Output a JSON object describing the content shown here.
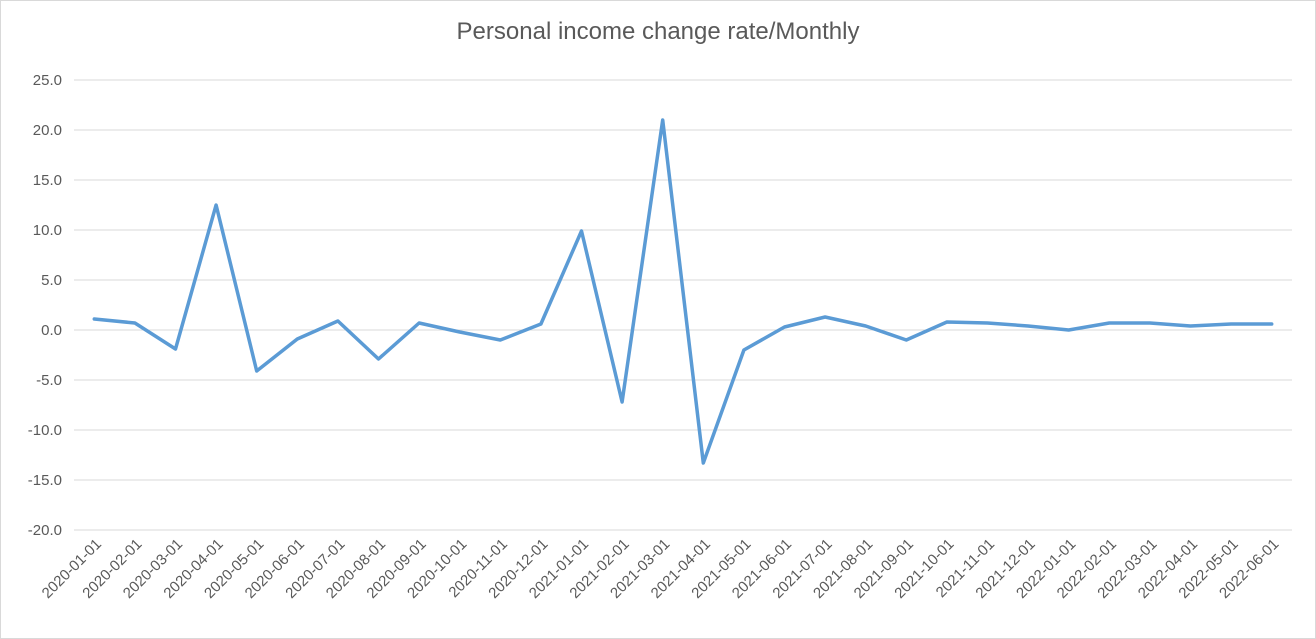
{
  "chart_data": {
    "type": "line",
    "title": "Personal income change rate/Monthly",
    "xlabel": "",
    "ylabel": "",
    "ylim": [
      -20,
      25
    ],
    "yticks": [
      "25.0",
      "20.0",
      "15.0",
      "10.0",
      "5.0",
      "0.0",
      "-5.0",
      "-10.0",
      "-15.0",
      "-20.0"
    ],
    "grid": true,
    "legend": "none",
    "colors": {
      "line": "#5b9bd5",
      "grid": "#d9d9d9",
      "text": "#595959"
    },
    "categories": [
      "2020-01-01",
      "2020-02-01",
      "2020-03-01",
      "2020-04-01",
      "2020-05-01",
      "2020-06-01",
      "2020-07-01",
      "2020-08-01",
      "2020-09-01",
      "2020-10-01",
      "2020-11-01",
      "2020-12-01",
      "2021-01-01",
      "2021-02-01",
      "2021-03-01",
      "2021-04-01",
      "2021-05-01",
      "2021-06-01",
      "2021-07-01",
      "2021-08-01",
      "2021-09-01",
      "2021-10-01",
      "2021-11-01",
      "2021-12-01",
      "2022-01-01",
      "2022-02-01",
      "2022-03-01",
      "2022-04-01",
      "2022-05-01",
      "2022-06-01"
    ],
    "series": [
      {
        "values": [
          1.1,
          0.7,
          -1.9,
          12.5,
          -4.1,
          -0.9,
          0.9,
          -2.9,
          0.7,
          -0.2,
          -1.0,
          0.6,
          9.9,
          -7.2,
          21.0,
          -13.3,
          -2.0,
          0.3,
          1.3,
          0.4,
          -1.0,
          0.8,
          0.7,
          0.4,
          0.0,
          0.7,
          0.7,
          0.4,
          0.6,
          0.6
        ]
      }
    ]
  }
}
